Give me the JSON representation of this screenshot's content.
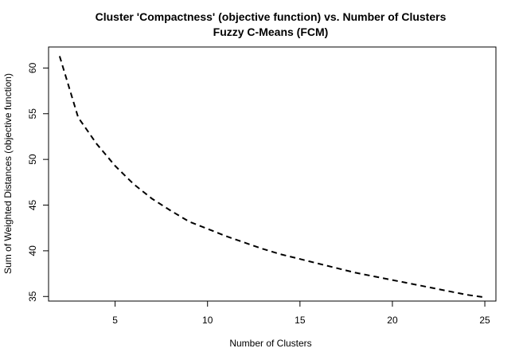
{
  "chart_data": {
    "type": "line",
    "title": "Cluster 'Compactness' (objective function) vs. Number of Clusters",
    "subtitle": "Fuzzy C-Means (FCM)",
    "xlabel": "Number of Clusters",
    "ylabel": "Sum of Weighted Distances (objective function)",
    "xlim": [
      1.4,
      25.6
    ],
    "ylim": [
      34.5,
      62.3
    ],
    "xticks": [
      5,
      10,
      15,
      20,
      25
    ],
    "yticks": [
      35,
      40,
      45,
      50,
      55,
      60
    ],
    "line_style": "dashed",
    "line_color": "#000000",
    "grid": false,
    "x": [
      2,
      3,
      4,
      5,
      6,
      7,
      8,
      9,
      10,
      11,
      12,
      13,
      14,
      15,
      16,
      17,
      18,
      19,
      20,
      21,
      22,
      23,
      24,
      25
    ],
    "y": [
      61.3,
      54.6,
      51.7,
      49.3,
      47.3,
      45.7,
      44.4,
      43.2,
      42.4,
      41.6,
      40.9,
      40.2,
      39.6,
      39.1,
      38.6,
      38.1,
      37.6,
      37.2,
      36.8,
      36.4,
      36.0,
      35.6,
      35.2,
      34.9
    ]
  }
}
